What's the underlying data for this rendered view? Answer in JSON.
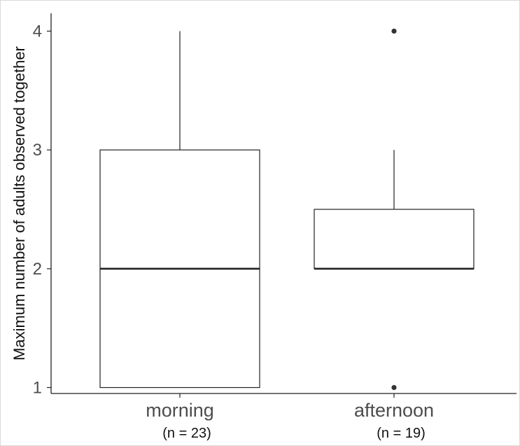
{
  "chart_data": {
    "type": "box",
    "title": "",
    "xlabel": "",
    "ylabel": "Maximum number of adults observed together",
    "ylim": [
      0.95,
      4.15
    ],
    "yticks": [
      1,
      2,
      3,
      4
    ],
    "grid": false,
    "categories": [
      "morning",
      "afternoon"
    ],
    "category_sublabels": [
      "(n = 23)",
      "(n = 19)"
    ],
    "boxes": [
      {
        "category": "morning",
        "whisker_low": 1,
        "q1": 1,
        "median": 2,
        "q3": 3,
        "whisker_high": 4,
        "outliers": []
      },
      {
        "category": "afternoon",
        "whisker_low": 2,
        "q1": 2,
        "median": 2,
        "q3": 2.5,
        "whisker_high": 3,
        "outliers": [
          1,
          4
        ]
      }
    ]
  }
}
